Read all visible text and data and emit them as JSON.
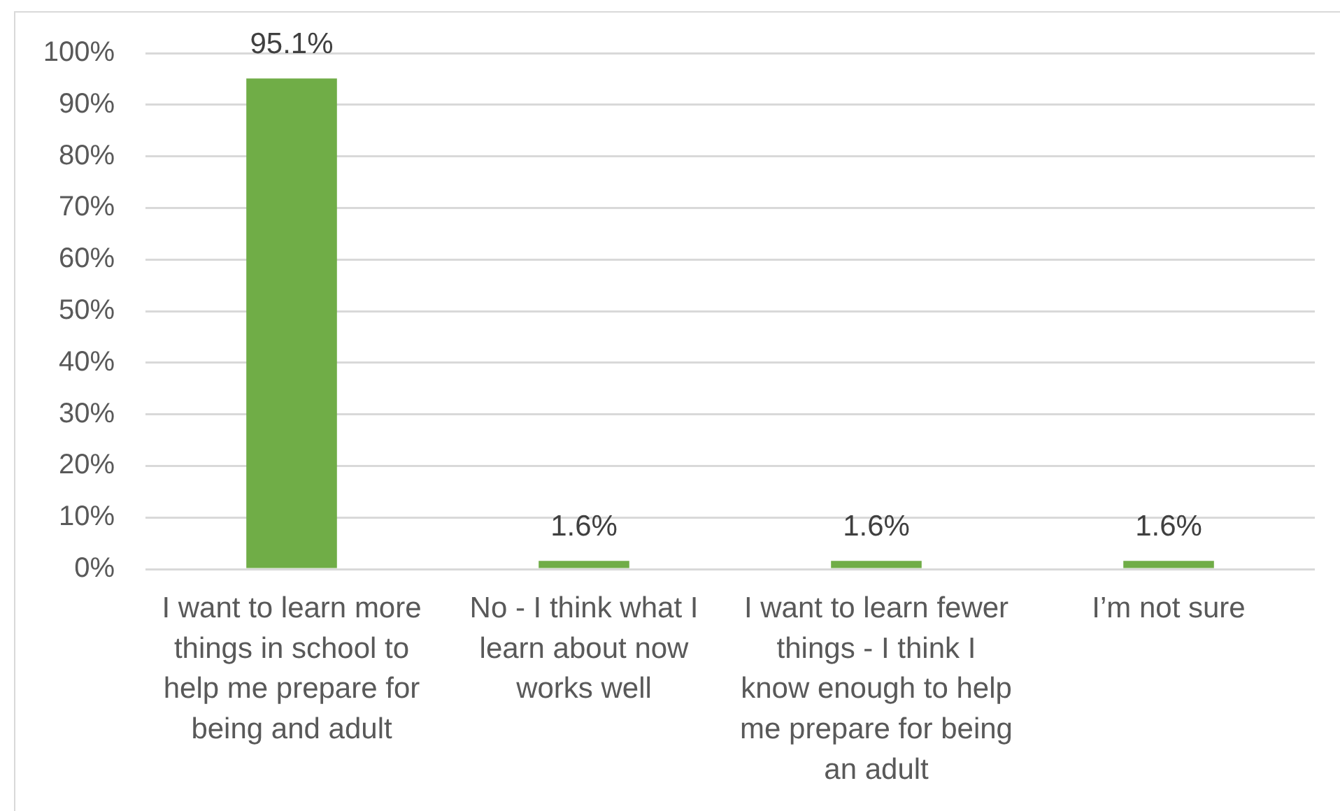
{
  "chart_data": {
    "type": "bar",
    "categories": [
      "I want to learn more things in school to help me prepare for being and adult",
      "No - I think what I learn about now works well",
      "I want to learn fewer things - I think I know enough to help me prepare for being an adult",
      "I’m not sure"
    ],
    "values": [
      95.1,
      1.6,
      1.6,
      1.6
    ],
    "color": "#70ad47",
    "value_labels": [
      "95.1%",
      "1.6%",
      "1.6%",
      "1.6%"
    ],
    "ylim": [
      0,
      100
    ],
    "yticks": [
      {
        "value": 0,
        "label": "0%"
      },
      {
        "value": 10,
        "label": "10%"
      },
      {
        "value": 20,
        "label": "20%"
      },
      {
        "value": 30,
        "label": "30%"
      },
      {
        "value": 40,
        "label": "40%"
      },
      {
        "value": 50,
        "label": "50%"
      },
      {
        "value": 60,
        "label": "60%"
      },
      {
        "value": 70,
        "label": "70%"
      },
      {
        "value": 80,
        "label": "80%"
      },
      {
        "value": 90,
        "label": "90%"
      },
      {
        "value": 100,
        "label": "100%"
      }
    ],
    "grid": "y"
  }
}
